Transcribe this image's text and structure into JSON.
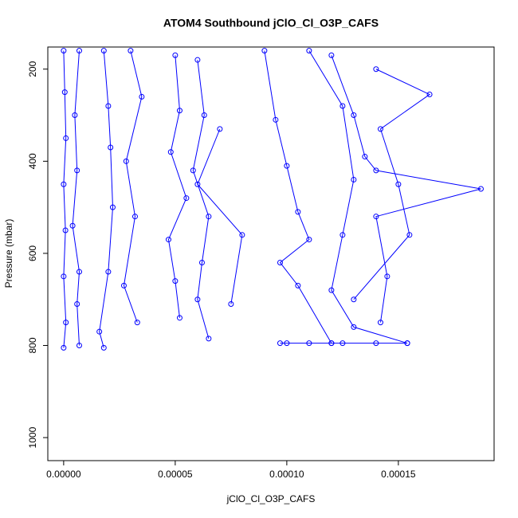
{
  "chart_data": {
    "type": "line",
    "title": "ATOM4 Southbound jClO_Cl_O3P_CAFS",
    "x_label": "jClO_Cl_O3P_CAFS",
    "y_label": "Pressure (mbar)",
    "color": "#0000ff",
    "xlim": [
      -7.1e-06,
      0.0001929
    ],
    "ylim": [
      1050,
      152
    ],
    "xticks": [
      {
        "value": 0,
        "label": "0.00000"
      },
      {
        "value": 5e-05,
        "label": "0.00005"
      },
      {
        "value": 0.0001,
        "label": "0.00010"
      },
      {
        "value": 0.00015,
        "label": "0.00015"
      }
    ],
    "yticks": [
      200,
      400,
      600,
      800,
      1000
    ],
    "series": [
      {
        "x": [
          0,
          5e-07,
          1e-06,
          0,
          8e-07,
          0,
          1e-06,
          0
        ],
        "values": [
          160,
          250,
          350,
          450,
          550,
          650,
          750,
          805
        ]
      },
      {
        "x": [
          7e-06,
          5e-06,
          6e-06,
          4e-06,
          7e-06,
          6e-06,
          7e-06
        ],
        "values": [
          160,
          300,
          420,
          540,
          640,
          710,
          800
        ]
      },
      {
        "x": [
          1.8e-05,
          2e-05,
          2.1e-05,
          2.2e-05,
          2e-05,
          1.6e-05,
          1.8e-05
        ],
        "values": [
          160,
          280,
          370,
          500,
          640,
          770,
          805
        ]
      },
      {
        "x": [
          3e-05,
          3.5e-05,
          2.8e-05,
          3.2e-05,
          2.7e-05,
          3.3e-05
        ],
        "values": [
          160,
          260,
          400,
          520,
          670,
          750
        ]
      },
      {
        "x": [
          5e-05,
          5.2e-05,
          4.8e-05,
          5.5e-05,
          4.7e-05,
          5e-05,
          5.2e-05
        ],
        "values": [
          170,
          290,
          380,
          480,
          570,
          660,
          740
        ]
      },
      {
        "x": [
          6e-05,
          6.3e-05,
          5.8e-05,
          6.5e-05,
          6.2e-05,
          6e-05,
          6.5e-05
        ],
        "values": [
          180,
          300,
          420,
          520,
          620,
          700,
          785
        ]
      },
      {
        "x": [
          7e-05,
          6e-05,
          8e-05,
          7.5e-05
        ],
        "values": [
          330,
          450,
          560,
          710
        ]
      },
      {
        "x": [
          9e-05,
          9.5e-05,
          0.0001,
          0.000105,
          0.00011,
          9.7e-05,
          0.000105,
          0.00012
        ],
        "values": [
          160,
          310,
          410,
          510,
          570,
          620,
          670,
          795
        ]
      },
      {
        "x": [
          0.00012,
          0.00013,
          0.000135,
          0.00014,
          0.000187,
          0.00014,
          0.000145,
          0.000142
        ],
        "values": [
          170,
          300,
          390,
          420,
          460,
          520,
          650,
          750
        ]
      },
      {
        "x": [
          0.00011,
          0.000125,
          0.00013,
          0.000125,
          0.00012,
          0.00013,
          0.000154
        ],
        "values": [
          160,
          280,
          440,
          560,
          680,
          760,
          795
        ]
      },
      {
        "x": [
          0.00014,
          0.000164,
          0.000142,
          0.00015,
          0.000155,
          0.00013
        ],
        "values": [
          200,
          255,
          330,
          450,
          560,
          700
        ]
      },
      {
        "x": [
          9.7e-05,
          0.0001,
          0.00011,
          0.00012,
          0.000125,
          0.00014,
          0.000154
        ],
        "values": [
          795,
          795,
          795,
          795,
          795,
          795,
          795
        ]
      }
    ]
  }
}
